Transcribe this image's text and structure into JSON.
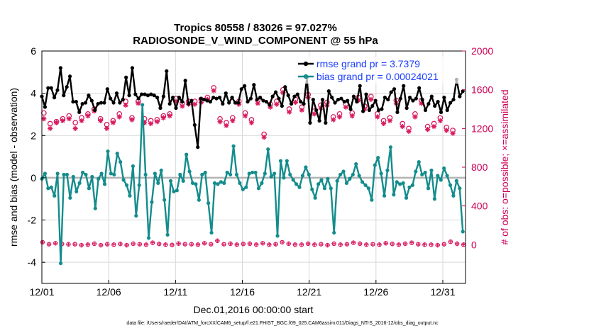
{
  "chart_data": {
    "type": "line",
    "title_line1": "Tropics 80558 / 83026 = 97.027%",
    "title_line2": "RADIOSONDE_V_WIND_COMPONENT @ 55 hPa",
    "xlabel": "Dec.01,2016 00:00:00 start",
    "ylabel": "rmse and bias (model - observation)",
    "ylabel_right": "# of obs: o=possible; ×=assimilated",
    "footnote": "data file: /Users/raeder/DAI/ATM_forcXX/CAM6_setup/f.e21.FHIST_BGC.f09_025.CAM6assim.011/Diags_NTrS_2016-12/obs_diag_output.nc",
    "xlim": [
      0,
      31.7
    ],
    "ylim": [
      -5,
      6
    ],
    "ylim_right": [
      -400,
      2000
    ],
    "x_ticks": [
      {
        "x": 0,
        "label": "12/01"
      },
      {
        "x": 5,
        "label": "12/06"
      },
      {
        "x": 10,
        "label": "12/11"
      },
      {
        "x": 15,
        "label": "12/16"
      },
      {
        "x": 20,
        "label": "12/21"
      },
      {
        "x": 25,
        "label": "12/26"
      },
      {
        "x": 30,
        "label": "12/31"
      }
    ],
    "y_ticks": [
      -4,
      -2,
      0,
      2,
      4,
      6
    ],
    "y_ticks_right": [
      0,
      400,
      800,
      1200,
      1600,
      2000
    ],
    "legend": [
      {
        "name": "rmse grand pr = 3.7379",
        "color": "#000000"
      },
      {
        "name": "bias grand pr = 0.00024021",
        "color": "#148c8c"
      }
    ],
    "series": [
      {
        "name": "rmse",
        "color": "#000000",
        "values": [
          3.85,
          3.35,
          4.25,
          4.25,
          3.8,
          4.15,
          5.2,
          3.9,
          4.3,
          4.8,
          3.6,
          3.6,
          3.1,
          3.5,
          3.55,
          3.9,
          3.65,
          3.2,
          3.5,
          3.55,
          3.55,
          4.2,
          3.75,
          3.55,
          4.0,
          3.55,
          3.7,
          4.75,
          3.9,
          5.2,
          3.95,
          3.75,
          3.95,
          3.95,
          3.9,
          3.95,
          3.9,
          3.8,
          3.3,
          3.85,
          5.05,
          3.5,
          3.8,
          3.3,
          3.8,
          3.6,
          4.6,
          3.5,
          3.65,
          2.5,
          1.45,
          3.75,
          3.7,
          3.65,
          3.6,
          3.8,
          3.75,
          3.8,
          3.5,
          4.0,
          3.55,
          3.8,
          3.55,
          3.55,
          4.2,
          4.35,
          3.6,
          3.75,
          4.4,
          3.7,
          3.8,
          3.65,
          3.6,
          3.45,
          3.85,
          4.05,
          3.75,
          3.4,
          4.3,
          3.9,
          3.5,
          3.85,
          3.95,
          3.6,
          3.5,
          4.75,
          2.6,
          3.7,
          3.2,
          2.7,
          3.7,
          2.6,
          4.1,
          3.8,
          3.55,
          3.7,
          3.75,
          3.6,
          3.65,
          3.25,
          3.85,
          3.6,
          4.35,
          3.15,
          3.95,
          3.2,
          3.4,
          3.65,
          3.2,
          3.25,
          3.8,
          3.7,
          4.05,
          4.2,
          3.1,
          3.75,
          4.35,
          3.3,
          3.8,
          3.65,
          3.75,
          4.25,
          3.7,
          3.2,
          3.5,
          3.85,
          3.4,
          3.6,
          3.1,
          3.8,
          3.2,
          3.55,
          3.7,
          4.65,
          3.85,
          4.1
        ]
      },
      {
        "name": "bias",
        "color": "#148c8c",
        "values": [
          -0.05,
          0.2,
          -0.5,
          -0.45,
          -0.85,
          0.2,
          -4.05,
          0.15,
          0.15,
          -0.95,
          0.05,
          -0.65,
          -0.25,
          0.25,
          0.15,
          -0.5,
          0.05,
          -1.45,
          -0.05,
          0.2,
          -0.3,
          1.25,
          0.2,
          0.15,
          1.15,
          0.75,
          -0.1,
          -0.35,
          -0.85,
          0.55,
          -1.8,
          -0.35,
          3.45,
          0.15,
          -2.85,
          -1.15,
          0.2,
          -0.25,
          0.35,
          -1.05,
          -2.7,
          -0.15,
          -0.65,
          -0.6,
          0.15,
          -0.15,
          1.1,
          0.3,
          -0.25,
          -0.3,
          -1.05,
          0.15,
          0.25,
          -1.2,
          -2.6,
          -0.25,
          -0.3,
          -0.2,
          -0.25,
          0.25,
          0.15,
          1.5,
          0.15,
          -0.25,
          -0.55,
          -0.45,
          0.2,
          0.25,
          0.25,
          -0.5,
          -0.25,
          0.2,
          1.35,
          0.05,
          0.2,
          -2.75,
          0.8,
          0.0,
          0.8,
          0.15,
          -0.1,
          -0.3,
          -0.45,
          0.1,
          0.5,
          0.15,
          -0.55,
          -0.95,
          -0.3,
          -0.1,
          -0.5,
          -0.05,
          -0.5,
          -2.6,
          -0.15,
          0.15,
          0.3,
          -0.25,
          -0.05,
          0.15,
          0.65,
          0.1,
          -0.2,
          -0.35,
          -0.5,
          -1.05,
          0.6,
          0.95,
          0.2,
          -0.85,
          0.35,
          1.45,
          -0.8,
          -0.2,
          -0.3,
          -0.25,
          -0.95,
          -0.45,
          -0.35,
          0.3,
          0.75,
          0.15,
          0.25,
          -0.5,
          0.35,
          -1.0,
          0.1,
          -0.1,
          0.45,
          0.1,
          -0.35,
          -0.85,
          -0.15,
          -0.5,
          -2.55
        ]
      }
    ],
    "obs_possible": [
      1360,
      1250,
      1270,
      1300,
      1330,
      1260,
      1310,
      1350,
      1400,
      1300,
      1240,
      1280,
      1350,
      1480,
      1310,
      1480,
      1300,
      1280,
      1290,
      1330,
      1350,
      1510,
      1460,
      1480,
      1480,
      1500,
      1520,
      1620,
      1300,
      1260,
      1310,
      1480,
      1360,
      1290,
      1490,
      1140,
      1450,
      1480,
      1600,
      1400,
      1500,
      1420,
      1550,
      1380,
      1440,
      1470,
      1320,
      1350,
      1450,
      1360,
      1520,
      1430,
      1530,
      1350,
      1280,
      1310,
      1490,
      1250,
      1200,
      1350,
      1490,
      1220,
      1250,
      1310,
      1210,
      1180
    ],
    "obs_assimilated": [
      1300,
      1200,
      1260,
      1280,
      1300,
      1200,
      1280,
      1330,
      1380,
      1280,
      1200,
      1260,
      1320,
      1440,
      1290,
      1460,
      1260,
      1250,
      1270,
      1310,
      1330,
      1480,
      1430,
      1450,
      1450,
      1470,
      1500,
      1590,
      1270,
      1230,
      1280,
      1450,
      1330,
      1260,
      1460,
      1110,
      1420,
      1450,
      1570,
      1370,
      1470,
      1390,
      1520,
      1350,
      1410,
      1440,
      1290,
      1320,
      1420,
      1330,
      1490,
      1400,
      1500,
      1320,
      1250,
      1280,
      1460,
      1220,
      1170,
      1320,
      1460,
      1190,
      1220,
      1280,
      1180,
      1150
    ],
    "obs_low": [
      25,
      5,
      15,
      8,
      3,
      5,
      -5,
      0,
      10,
      -5,
      5,
      0,
      8,
      -5,
      10,
      5,
      0,
      20,
      8,
      0,
      -3,
      12,
      5,
      5,
      0,
      15,
      5,
      40,
      5,
      10,
      0,
      8,
      10,
      0,
      15,
      0,
      5,
      25,
      10,
      0,
      0,
      10,
      0,
      5,
      -5,
      10,
      0,
      5,
      20,
      10,
      0,
      5,
      0,
      15,
      8,
      0,
      10,
      20,
      5,
      0,
      0,
      -5,
      5,
      30,
      10,
      0
    ]
  }
}
